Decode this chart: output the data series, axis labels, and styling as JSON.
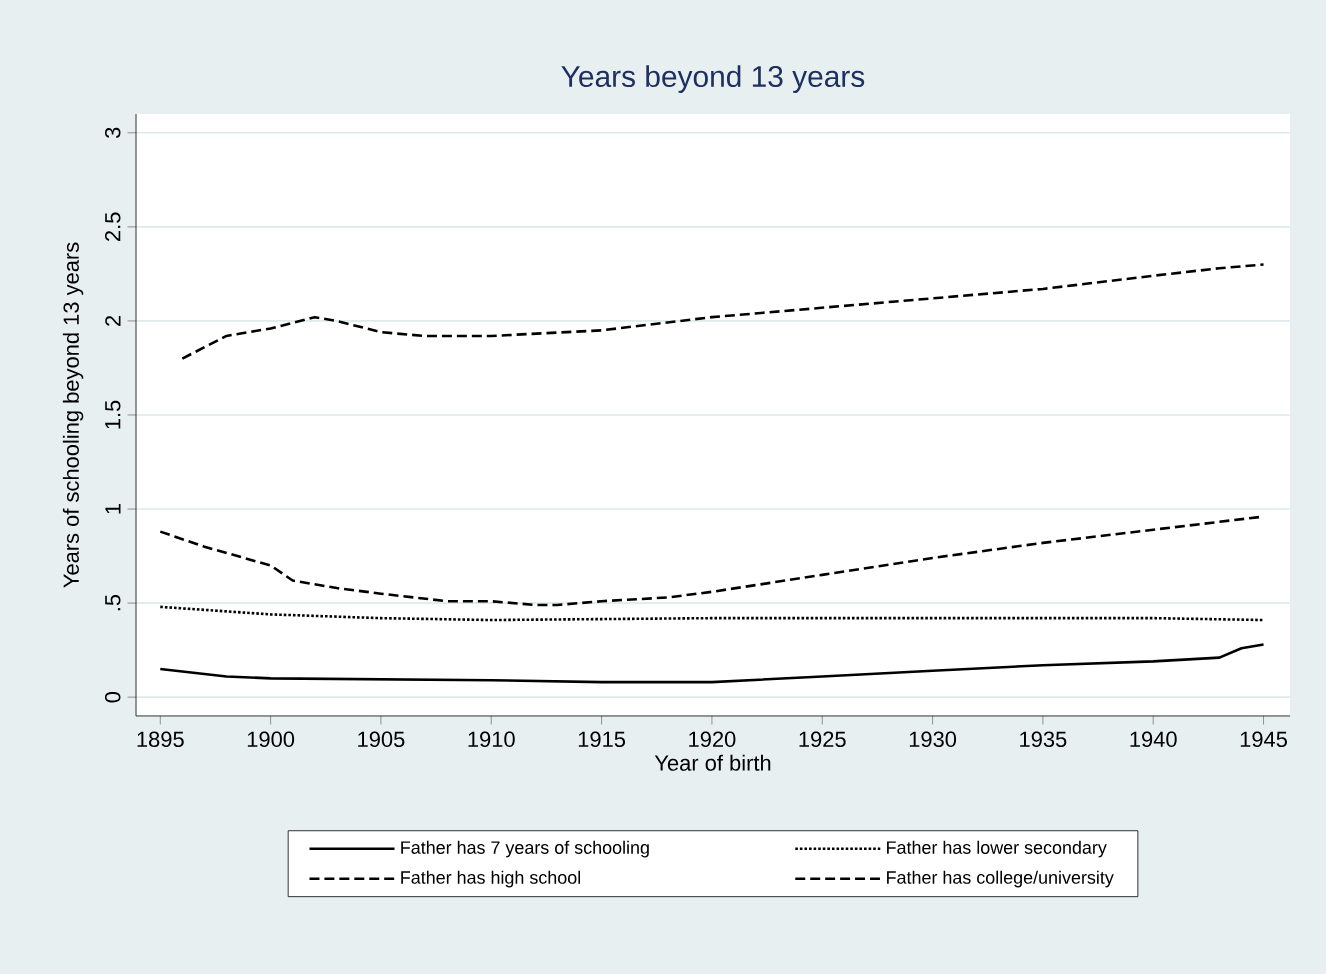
{
  "chart_data": {
    "type": "line",
    "title": "Years beyond 13 years",
    "xlabel": "Year of birth",
    "ylabel": "Years of schooling beyond 13 years",
    "xlim": [
      1893.9,
      1946.2
    ],
    "ylim": [
      -0.1,
      3.1
    ],
    "xticks": [
      1895,
      1900,
      1905,
      1910,
      1915,
      1920,
      1925,
      1930,
      1935,
      1940,
      1945
    ],
    "yticks": [
      0,
      {
        "value": 0.5,
        "label": ".5"
      },
      1,
      1.5,
      2,
      2.5,
      3
    ],
    "grid": "y",
    "legend": "bottom",
    "marker": "none",
    "series": [
      {
        "name": "Father has 7 years of schooling",
        "color": "#000000",
        "line_style": "solid",
        "x": [
          1895,
          1898,
          1900,
          1910,
          1915,
          1920,
          1925,
          1930,
          1935,
          1940,
          1943,
          1944,
          1945
        ],
        "values": [
          0.15,
          0.11,
          0.1,
          0.09,
          0.08,
          0.08,
          0.11,
          0.14,
          0.17,
          0.19,
          0.21,
          0.26,
          0.28
        ]
      },
      {
        "name": "Father has lower secondary",
        "color": "#000000",
        "line_style": "dotted",
        "x": [
          1895,
          1900,
          1905,
          1910,
          1920,
          1930,
          1940,
          1945
        ],
        "values": [
          0.48,
          0.44,
          0.42,
          0.41,
          0.42,
          0.42,
          0.42,
          0.41
        ]
      },
      {
        "name": "Father has high school",
        "color": "#000000",
        "line_style": "dashed",
        "x": [
          1895,
          1897,
          1900,
          1901,
          1903,
          1905,
          1908,
          1910,
          1912,
          1913,
          1915,
          1918,
          1920,
          1925,
          1930,
          1935,
          1940,
          1945
        ],
        "values": [
          0.88,
          0.8,
          0.7,
          0.62,
          0.58,
          0.55,
          0.51,
          0.51,
          0.49,
          0.49,
          0.51,
          0.53,
          0.56,
          0.65,
          0.74,
          0.82,
          0.89,
          0.96
        ]
      },
      {
        "name": "Father has college/university",
        "color": "#000000",
        "line_style": "dashed",
        "x": [
          1896,
          1898,
          1900,
          1902,
          1903,
          1905,
          1907,
          1910,
          1915,
          1920,
          1925,
          1930,
          1935,
          1940,
          1943,
          1945
        ],
        "values": [
          1.8,
          1.92,
          1.96,
          2.02,
          2.0,
          1.94,
          1.92,
          1.92,
          1.95,
          2.02,
          2.07,
          2.12,
          2.17,
          2.24,
          2.28,
          2.3
        ]
      }
    ]
  }
}
